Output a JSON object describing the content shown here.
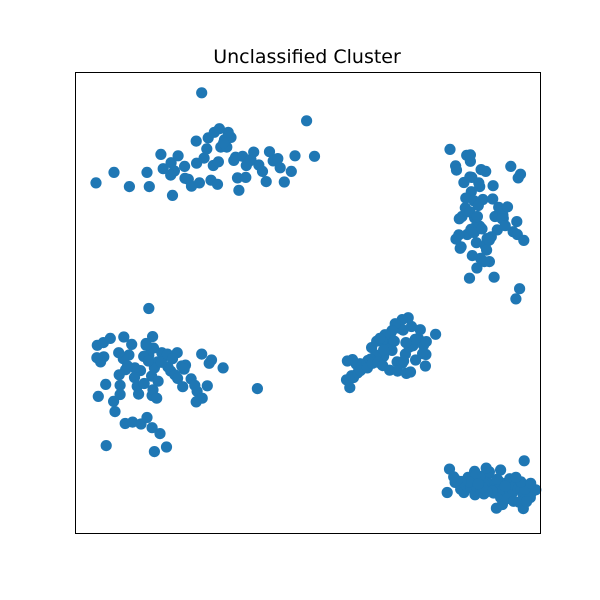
{
  "chart_data": {
    "type": "scatter",
    "title": "Unclassified Cluster",
    "xlabel": "",
    "ylabel": "",
    "xlim": [
      0,
      100
    ],
    "ylim": [
      0,
      100
    ],
    "grid": false,
    "axes_ticks_visible": false,
    "point_color": "#1f77b4",
    "series": [
      {
        "points": [
          [
            27.1,
            95.7
          ],
          [
            49.7,
            89.6
          ],
          [
            4.3,
            76.1
          ],
          [
            8.2,
            78.4
          ],
          [
            11.5,
            75.3
          ],
          [
            15.3,
            78.4
          ],
          [
            15.8,
            75.3
          ],
          [
            18.3,
            82.3
          ],
          [
            20.5,
            80.5
          ],
          [
            21.2,
            78.7
          ],
          [
            22.0,
            82.0
          ],
          [
            20.8,
            73.4
          ],
          [
            24.2,
            76.9
          ],
          [
            24.9,
            75.4
          ],
          [
            26.0,
            80.4
          ],
          [
            26.6,
            76.1
          ],
          [
            27.6,
            81.5
          ],
          [
            28.2,
            83.5
          ],
          [
            29.1,
            76.7
          ],
          [
            29.6,
            79.9
          ],
          [
            30.7,
            80.7
          ],
          [
            31.2,
            83.9
          ],
          [
            32.0,
            85.5
          ],
          [
            32.5,
            83.9
          ],
          [
            30.9,
            87.9
          ],
          [
            33.4,
            86.0
          ],
          [
            34.4,
            81.7
          ],
          [
            34.8,
            77.2
          ],
          [
            35.1,
            74.5
          ],
          [
            35.9,
            81.9
          ],
          [
            36.6,
            77.3
          ],
          [
            37.3,
            80.8
          ],
          [
            38.3,
            82.8
          ],
          [
            39.4,
            80.0
          ],
          [
            40.2,
            78.6
          ],
          [
            41.7,
            82.9
          ],
          [
            42.5,
            80.9
          ],
          [
            43.5,
            81.4
          ],
          [
            44.0,
            79.4
          ],
          [
            44.9,
            76.3
          ],
          [
            41.0,
            76.4
          ],
          [
            46.4,
            78.6
          ],
          [
            23.4,
            79.7
          ],
          [
            23.5,
            77.1
          ],
          [
            25.9,
            85.2
          ],
          [
            28.5,
            85.9
          ],
          [
            29.8,
            87.1
          ],
          [
            31.8,
            84.8
          ],
          [
            32.8,
            87.1
          ],
          [
            34.0,
            81.0
          ],
          [
            36.7,
            79.9
          ],
          [
            37.7,
            81.2
          ],
          [
            30.5,
            75.8
          ],
          [
            20.4,
            77.8
          ],
          [
            18.8,
            79.2
          ],
          [
            47.2,
            82.0
          ],
          [
            51.4,
            81.9
          ],
          [
            81.8,
            79.8
          ],
          [
            80.6,
            83.4
          ],
          [
            85.2,
            74.2
          ],
          [
            87.0,
            75.3
          ],
          [
            87.7,
            72.5
          ],
          [
            88.3,
            78.6
          ],
          [
            89.9,
            75.5
          ],
          [
            92.1,
            68.4
          ],
          [
            89.8,
            72.6
          ],
          [
            90.8,
            65.9
          ],
          [
            89.5,
            64.4
          ],
          [
            88.2,
            62.5
          ],
          [
            87.0,
            66.7
          ],
          [
            85.9,
            68.5
          ],
          [
            83.9,
            70.7
          ],
          [
            83.2,
            68.8
          ],
          [
            82.6,
            68.3
          ],
          [
            84.0,
            72.8
          ],
          [
            84.9,
            77.4
          ],
          [
            85.8,
            72.2
          ],
          [
            86.7,
            71.2
          ],
          [
            84.9,
            69.8
          ],
          [
            86.0,
            66.4
          ],
          [
            84.3,
            64.9
          ],
          [
            82.5,
            64.8
          ],
          [
            82.8,
            61.9
          ],
          [
            85.1,
            66.0
          ],
          [
            86.3,
            63.1
          ],
          [
            88.5,
            61.5
          ],
          [
            89.1,
            59.0
          ],
          [
            87.2,
            59.7
          ],
          [
            85.8,
            65.3
          ],
          [
            87.5,
            66.1
          ],
          [
            88.6,
            64.0
          ],
          [
            90.3,
            68.8
          ],
          [
            91.1,
            70.8
          ],
          [
            92.0,
            69.1
          ],
          [
            93.0,
            70.9
          ],
          [
            94.2,
            65.5
          ],
          [
            95.1,
            64.9
          ],
          [
            95.0,
            67.7
          ],
          [
            96.5,
            63.6
          ],
          [
            95.3,
            77.2
          ],
          [
            93.7,
            79.7
          ],
          [
            95.8,
            78.0
          ],
          [
            85.3,
            77.3
          ],
          [
            86.8,
            76.1
          ],
          [
            84.2,
            82.1
          ],
          [
            85.0,
            80.8
          ],
          [
            90.1,
            55.6
          ],
          [
            94.8,
            50.9
          ],
          [
            95.6,
            53.1
          ],
          [
            82.0,
            78.9
          ],
          [
            87.3,
            79.0
          ],
          [
            85.0,
            82.2
          ],
          [
            83.6,
            76.2
          ],
          [
            91.8,
            68.3
          ],
          [
            92.5,
            66.8
          ],
          [
            88.0,
            59.0
          ],
          [
            86.4,
            57.6
          ],
          [
            84.8,
            55.4
          ],
          [
            83.0,
            62.2
          ],
          [
            81.9,
            63.9
          ],
          [
            89.1,
            63.7
          ],
          [
            86.5,
            68.8
          ],
          [
            85.4,
            60.3
          ],
          [
            15.7,
            48.8
          ],
          [
            16.5,
            42.7
          ],
          [
            20.4,
            35.2
          ],
          [
            21.8,
            39.2
          ],
          [
            22.8,
            36.3
          ],
          [
            23.6,
            36.5
          ],
          [
            21.3,
            34.4
          ],
          [
            19.8,
            36.1
          ],
          [
            19.1,
            38.5
          ],
          [
            18.5,
            39.2
          ],
          [
            17.6,
            37.2
          ],
          [
            16.9,
            35.9
          ],
          [
            16.3,
            34.1
          ],
          [
            15.7,
            38.6
          ],
          [
            15.1,
            41.2
          ],
          [
            14.6,
            38.4
          ],
          [
            13.9,
            35.3
          ],
          [
            13.2,
            31.9
          ],
          [
            12.7,
            35.9
          ],
          [
            12.0,
            41.0
          ],
          [
            11.4,
            38.7
          ],
          [
            10.7,
            35.5
          ],
          [
            10.2,
            37.9
          ],
          [
            9.3,
            34.4
          ],
          [
            8.1,
            28.6
          ],
          [
            6.4,
            32.3
          ],
          [
            6.0,
            38.3
          ],
          [
            5.3,
            37.2
          ],
          [
            4.5,
            38.1
          ],
          [
            4.6,
            40.8
          ],
          [
            5.9,
            41.4
          ],
          [
            7.4,
            42.3
          ],
          [
            9.2,
            39.2
          ],
          [
            9.5,
            32.1
          ],
          [
            10.6,
            23.8
          ],
          [
            12.2,
            24.1
          ],
          [
            14.0,
            23.7
          ],
          [
            15.3,
            25.1
          ],
          [
            16.4,
            22.9
          ],
          [
            18.1,
            21.6
          ],
          [
            19.5,
            18.7
          ],
          [
            16.4,
            29.9
          ],
          [
            17.7,
            33.0
          ],
          [
            18.4,
            37.1
          ],
          [
            19.7,
            38.9
          ],
          [
            16.7,
            40.2
          ],
          [
            15.1,
            40.8
          ],
          [
            10.3,
            42.6
          ],
          [
            4.8,
            29.7
          ],
          [
            6.5,
            19.0
          ],
          [
            16.9,
            17.7
          ],
          [
            21.9,
            33.6
          ],
          [
            26.1,
            30.8
          ],
          [
            27.2,
            29.3
          ],
          [
            28.7,
            36.9
          ],
          [
            28.3,
            32.0
          ],
          [
            29.2,
            37.6
          ],
          [
            27.1,
            38.9
          ],
          [
            11.1,
            36.3
          ],
          [
            12.6,
            33.8
          ],
          [
            14.7,
            32.5
          ],
          [
            13.5,
            30.2
          ],
          [
            16.6,
            31.1
          ],
          [
            8.4,
            26.4
          ],
          [
            9.5,
            30.1
          ],
          [
            17.4,
            29.3
          ],
          [
            20.8,
            37.9
          ],
          [
            23.0,
            31.8
          ],
          [
            24.8,
            33.5
          ],
          [
            25.6,
            32.1
          ],
          [
            25.9,
            28.5
          ],
          [
            31.7,
            35.9
          ],
          [
            39.1,
            31.4
          ],
          [
            23.3,
            35.6
          ],
          [
            15.6,
            37.4
          ],
          [
            59.0,
            31.6
          ],
          [
            63.7,
            40.3
          ],
          [
            64.8,
            41.7
          ],
          [
            65.6,
            37.9
          ],
          [
            66.3,
            38.4
          ],
          [
            67.1,
            42.0
          ],
          [
            67.9,
            43.6
          ],
          [
            68.6,
            41.7
          ],
          [
            69.2,
            37.2
          ],
          [
            69.8,
            44.5
          ],
          [
            70.5,
            44.1
          ],
          [
            71.0,
            38.9
          ],
          [
            71.8,
            40.4
          ],
          [
            72.6,
            40.7
          ],
          [
            73.2,
            37.6
          ],
          [
            73.8,
            42.3
          ],
          [
            74.9,
            40.8
          ],
          [
            75.5,
            41.6
          ],
          [
            74.2,
            44.2
          ],
          [
            72.3,
            44.9
          ],
          [
            71.6,
            46.8
          ],
          [
            70.3,
            46.4
          ],
          [
            69.6,
            44.8
          ],
          [
            68.8,
            45.5
          ],
          [
            68.1,
            44.0
          ],
          [
            66.6,
            43.1
          ],
          [
            66.0,
            41.7
          ],
          [
            65.5,
            42.3
          ],
          [
            64.6,
            38.7
          ],
          [
            63.5,
            37.8
          ],
          [
            62.9,
            37.5
          ],
          [
            62.1,
            36.6
          ],
          [
            61.2,
            36.8
          ],
          [
            60.4,
            36.7
          ],
          [
            59.6,
            37.7
          ],
          [
            58.5,
            37.4
          ],
          [
            58.3,
            33.3
          ],
          [
            59.4,
            34.2
          ],
          [
            59.8,
            33.8
          ],
          [
            60.7,
            34.8
          ],
          [
            61.3,
            35.3
          ],
          [
            62.8,
            35.9
          ],
          [
            63.9,
            36.9
          ],
          [
            65.1,
            37.1
          ],
          [
            66.1,
            36.4
          ],
          [
            67.6,
            35.4
          ],
          [
            69.3,
            35.2
          ],
          [
            70.3,
            36.9
          ],
          [
            70.6,
            37.4
          ],
          [
            71.2,
            34.7
          ],
          [
            72.1,
            35.0
          ],
          [
            75.3,
            36.3
          ],
          [
            77.5,
            43.2
          ],
          [
            75.4,
            38.8
          ],
          [
            74.7,
            39.0
          ],
          [
            73.1,
            42.1
          ],
          [
            71.1,
            41.4
          ],
          [
            68.1,
            39.7
          ],
          [
            67.2,
            39.9
          ],
          [
            66.3,
            39.8
          ],
          [
            80.0,
            8.8
          ],
          [
            80.5,
            13.9
          ],
          [
            81.7,
            11.0
          ],
          [
            82.9,
            9.5
          ],
          [
            83.6,
            8.8
          ],
          [
            84.2,
            10.3
          ],
          [
            84.5,
            12.1
          ],
          [
            85.2,
            9.8
          ],
          [
            86.0,
            8.3
          ],
          [
            86.3,
            10.1
          ],
          [
            86.8,
            11.6
          ],
          [
            87.2,
            9.5
          ],
          [
            87.9,
            8.5
          ],
          [
            88.2,
            11.0
          ],
          [
            88.8,
            12.7
          ],
          [
            89.3,
            10.6
          ],
          [
            90.0,
            8.7
          ],
          [
            90.5,
            9.8
          ],
          [
            91.2,
            11.2
          ],
          [
            91.5,
            7.7
          ],
          [
            92.1,
            9.5
          ],
          [
            92.6,
            10.8
          ],
          [
            93.2,
            9.6
          ],
          [
            93.5,
            11.8
          ],
          [
            94.1,
            8.8
          ],
          [
            94.6,
            10.3
          ],
          [
            95.3,
            9.6
          ],
          [
            95.9,
            9.3
          ],
          [
            96.4,
            8.1
          ],
          [
            96.8,
            10.4
          ],
          [
            97.4,
            9.8
          ],
          [
            98.1,
            8.7
          ],
          [
            98.7,
            9.3
          ],
          [
            99.1,
            9.4
          ],
          [
            97.9,
            7.7
          ],
          [
            90.8,
            11.7
          ],
          [
            89.1,
            13.3
          ],
          [
            88.4,
            14.1
          ],
          [
            85.9,
            13.4
          ],
          [
            87.9,
            10.6
          ],
          [
            87.0,
            12.3
          ],
          [
            86.1,
            12.6
          ],
          [
            84.7,
            11.1
          ],
          [
            83.0,
            11.2
          ],
          [
            82.1,
            11.4
          ],
          [
            81.4,
            12.2
          ],
          [
            90.6,
            5.4
          ],
          [
            91.9,
            6.2
          ],
          [
            93.0,
            7.5
          ],
          [
            94.3,
            6.9
          ],
          [
            95.5,
            6.7
          ],
          [
            96.4,
            5.3
          ],
          [
            97.1,
            6.8
          ],
          [
            96.7,
            9.5
          ],
          [
            95.9,
            11.1
          ],
          [
            94.8,
            12.1
          ],
          [
            96.6,
            15.7
          ],
          [
            98.0,
            10.8
          ],
          [
            92.5,
            10.2
          ],
          [
            91.5,
            13.7
          ],
          [
            89.7,
            9.1
          ],
          [
            88.6,
            9.0
          ],
          [
            87.6,
            9.9
          ],
          [
            86.7,
            10.7
          ]
        ]
      }
    ]
  }
}
